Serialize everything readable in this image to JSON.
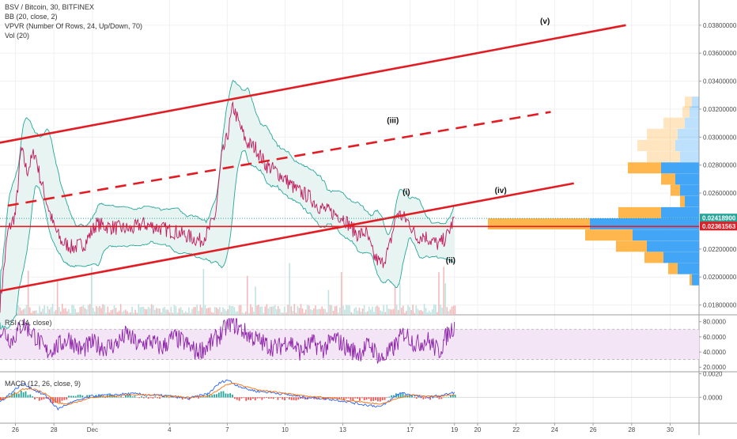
{
  "legend": {
    "symbol": "BSV / Bitcoin, 30, BITFINEX",
    "bb": "BB (20, close, 2)",
    "vpvr": "VPVR (Number Of Rows, 24, Up/Down, 70)",
    "vol": "Vol (20)",
    "rsi": "RSI (14, close)",
    "macd": "MACD (12, 26, close, 9)"
  },
  "colors": {
    "channel": "#e31b23",
    "price": "#c2185b",
    "bands": "#26a69a",
    "band_fill": "#e7f4f2",
    "rsi_line": "#8e24aa",
    "rsi_fill": "#f3e5f5",
    "macd_line": "#2962ff",
    "signal_line": "#ff6d00",
    "vol_up": "#bfe3e0",
    "vol_down": "#f3bcbc",
    "vpvr_up": "#42a5f5",
    "vpvr_down": "#ffb74d",
    "current_price_line": "#26a69a",
    "level_line": "#e31b23"
  },
  "chart_data": {
    "type": "line",
    "pair": "BSV / Bitcoin",
    "timeframe": "30",
    "exchange": "BITFINEX",
    "x_ticks": [
      "26",
      "28",
      "Dec",
      "4",
      "7",
      "10",
      "13",
      "17",
      "19",
      "20",
      "22",
      "24",
      "26",
      "28",
      "30"
    ],
    "x_tick_days": [
      26,
      28,
      30,
      34,
      37,
      40,
      43,
      46.5,
      48.8,
      50,
      52,
      54,
      56,
      58,
      60
    ],
    "xlim_days": [
      25.2,
      61.5
    ],
    "price_axis": {
      "ticks": [
        "0.03800000",
        "0.03600000",
        "0.03400000",
        "0.03200000",
        "0.03000000",
        "0.02800000",
        "0.02600000",
        "0.02200000",
        "0.02000000",
        "0.01800000"
      ],
      "tick_values": [
        0.038,
        0.036,
        0.034,
        0.032,
        0.03,
        0.028,
        0.026,
        0.022,
        0.02,
        0.018
      ],
      "ylim": [
        0.0173,
        0.0398
      ],
      "current_price": 0.024189,
      "current_price_label": "0.02418900",
      "level_price": 0.02361563,
      "level_label": "0.02361563"
    },
    "series": [
      {
        "name": "BSV / Bitcoin",
        "x": [
          25.2,
          25.6,
          26.0,
          26.3,
          26.6,
          27.0,
          27.3,
          27.6,
          28.0,
          28.4,
          29.0,
          29.6,
          30.2,
          30.8,
          31.4,
          32.0,
          32.6,
          33.2,
          33.8,
          34.4,
          35.0,
          35.6,
          36.0,
          36.4,
          36.7,
          37.0,
          37.3,
          37.6,
          38.0,
          38.5,
          39.0,
          39.5,
          40.0,
          40.6,
          41.2,
          41.8,
          42.4,
          43.0,
          43.4,
          43.8,
          44.2,
          44.6,
          45.0,
          45.4,
          45.8,
          46.2,
          46.5,
          46.8,
          47.2,
          47.6,
          48.0,
          48.4,
          48.8
        ],
        "y": [
          0.018,
          0.0232,
          0.0245,
          0.0292,
          0.0275,
          0.029,
          0.027,
          0.0255,
          0.0236,
          0.0225,
          0.0221,
          0.0224,
          0.0238,
          0.0236,
          0.0235,
          0.0234,
          0.0238,
          0.0236,
          0.0234,
          0.0232,
          0.0229,
          0.0226,
          0.0232,
          0.0245,
          0.0285,
          0.03,
          0.0322,
          0.031,
          0.0296,
          0.0292,
          0.028,
          0.0276,
          0.027,
          0.0262,
          0.0258,
          0.025,
          0.0246,
          0.0243,
          0.0236,
          0.023,
          0.0232,
          0.0215,
          0.0209,
          0.022,
          0.0246,
          0.0242,
          0.0238,
          0.0228,
          0.023,
          0.0226,
          0.0223,
          0.0229,
          0.0242
        ]
      }
    ],
    "channel_lines": [
      {
        "style": "solid",
        "x": [
          24.8,
          57.7
        ],
        "y": [
          0.0295,
          0.038
        ]
      },
      {
        "style": "dashed",
        "x": [
          25.6,
          53.8
        ],
        "y": [
          0.0251,
          0.0318
        ]
      },
      {
        "style": "solid",
        "x": [
          24.4,
          55.0
        ],
        "y": [
          0.0188,
          0.0267
        ]
      }
    ],
    "wave_labels": [
      {
        "text": "(v)",
        "x": 53.5,
        "y": 0.0381
      },
      {
        "text": "(iii)",
        "x": 45.6,
        "y": 0.031
      },
      {
        "text": "(iv)",
        "x": 51.2,
        "y": 0.026
      },
      {
        "text": "(i)",
        "x": 46.3,
        "y": 0.0259
      },
      {
        "text": "(ii)",
        "x": 48.6,
        "y": 0.021
      }
    ],
    "vpvr_rows": [
      {
        "price": 0.0325,
        "up": 0.3,
        "down": 0.3,
        "faded": true
      },
      {
        "price": 0.0318,
        "up": 0.4,
        "down": 0.3,
        "faded": true
      },
      {
        "price": 0.031,
        "up": 0.6,
        "down": 0.9,
        "faded": true
      },
      {
        "price": 0.0302,
        "up": 0.9,
        "down": 1.3,
        "faded": true
      },
      {
        "price": 0.0294,
        "up": 1.0,
        "down": 1.6,
        "faded": true
      },
      {
        "price": 0.0286,
        "up": 0.8,
        "down": 1.4,
        "faded": true
      },
      {
        "price": 0.0278,
        "up": 1.6,
        "down": 1.4,
        "faded": false
      },
      {
        "price": 0.027,
        "up": 1.0,
        "down": 0.6,
        "faded": false
      },
      {
        "price": 0.0262,
        "up": 0.8,
        "down": 0.4,
        "faded": false
      },
      {
        "price": 0.0254,
        "up": 0.6,
        "down": 0.2,
        "faded": false
      },
      {
        "price": 0.0246,
        "up": 1.6,
        "down": 1.8,
        "faded": false
      },
      {
        "price": 0.0238,
        "up": 4.6,
        "down": 4.3,
        "faded": false
      },
      {
        "price": 0.023,
        "up": 2.8,
        "down": 2.0,
        "faded": false
      },
      {
        "price": 0.0222,
        "up": 2.2,
        "down": 1.3,
        "faded": false
      },
      {
        "price": 0.0214,
        "up": 1.5,
        "down": 0.8,
        "faded": false
      },
      {
        "price": 0.0206,
        "up": 0.9,
        "down": 0.4,
        "faded": false
      },
      {
        "price": 0.0198,
        "up": 0.3,
        "down": 0.1,
        "faded": false
      }
    ],
    "rsi": {
      "ticks": [
        "80.0000",
        "60.0000",
        "40.0000",
        "20.0000"
      ],
      "tick_values": [
        80,
        60,
        40,
        20
      ],
      "ylim": [
        14,
        88
      ],
      "band": [
        30,
        70
      ],
      "x": [
        25.2,
        25.8,
        26.4,
        27.0,
        27.6,
        28.2,
        28.8,
        29.4,
        30.0,
        30.6,
        31.2,
        31.8,
        32.4,
        33.0,
        33.6,
        34.2,
        34.8,
        35.4,
        36.0,
        36.6,
        37.2,
        37.8,
        38.4,
        39.0,
        39.6,
        40.2,
        40.8,
        41.4,
        42.0,
        42.6,
        43.2,
        43.8,
        44.4,
        45.0,
        45.6,
        46.2,
        46.8,
        47.4,
        48.0,
        48.4,
        48.8
      ],
      "y": [
        72,
        55,
        78,
        62,
        40,
        48,
        58,
        42,
        52,
        46,
        50,
        64,
        48,
        55,
        45,
        60,
        52,
        40,
        48,
        62,
        80,
        68,
        58,
        50,
        45,
        56,
        40,
        52,
        44,
        58,
        46,
        38,
        50,
        30,
        44,
        66,
        50,
        56,
        40,
        62,
        75
      ]
    },
    "macd": {
      "ticks": [
        "0.0020",
        "0.0000"
      ],
      "tick_values": [
        0.002,
        0.0
      ],
      "ylim": [
        -0.0022,
        0.0021
      ],
      "x": [
        25.2,
        25.8,
        26.4,
        27.0,
        27.6,
        28.2,
        28.8,
        29.4,
        30.0,
        31.0,
        32.0,
        33.0,
        34.0,
        35.0,
        36.0,
        36.6,
        37.0,
        37.4,
        38.0,
        38.6,
        39.4,
        40.2,
        41.0,
        42.0,
        43.0,
        44.0,
        45.0,
        46.0,
        46.6,
        47.2,
        48.0,
        48.8
      ],
      "macd_values": [
        -0.0004,
        0.0004,
        0.0012,
        0.0006,
        0.0001,
        -0.001,
        -0.0005,
        -0.0002,
        0.0001,
        0.0002,
        0.0003,
        0.0002,
        0.0001,
        -0.0001,
        0.0003,
        0.0012,
        0.0015,
        0.0011,
        0.0007,
        0.0005,
        0.0004,
        0.0002,
        0.0,
        -0.0001,
        -0.0003,
        -0.0006,
        -0.0008,
        0.0004,
        0.0002,
        0.0,
        0.0001,
        0.0004
      ],
      "signal_values": [
        -0.0002,
        0.0001,
        0.0007,
        0.0007,
        0.0003,
        -0.0005,
        -0.0006,
        -0.0003,
        0.0,
        0.0001,
        0.0002,
        0.0002,
        0.0001,
        0.0,
        0.0001,
        0.0007,
        0.0011,
        0.0012,
        0.0009,
        0.0006,
        0.0005,
        0.0003,
        0.0001,
        0.0,
        -0.0002,
        -0.0004,
        -0.0006,
        0.0,
        0.0002,
        0.0001,
        0.0001,
        0.0002
      ]
    }
  }
}
